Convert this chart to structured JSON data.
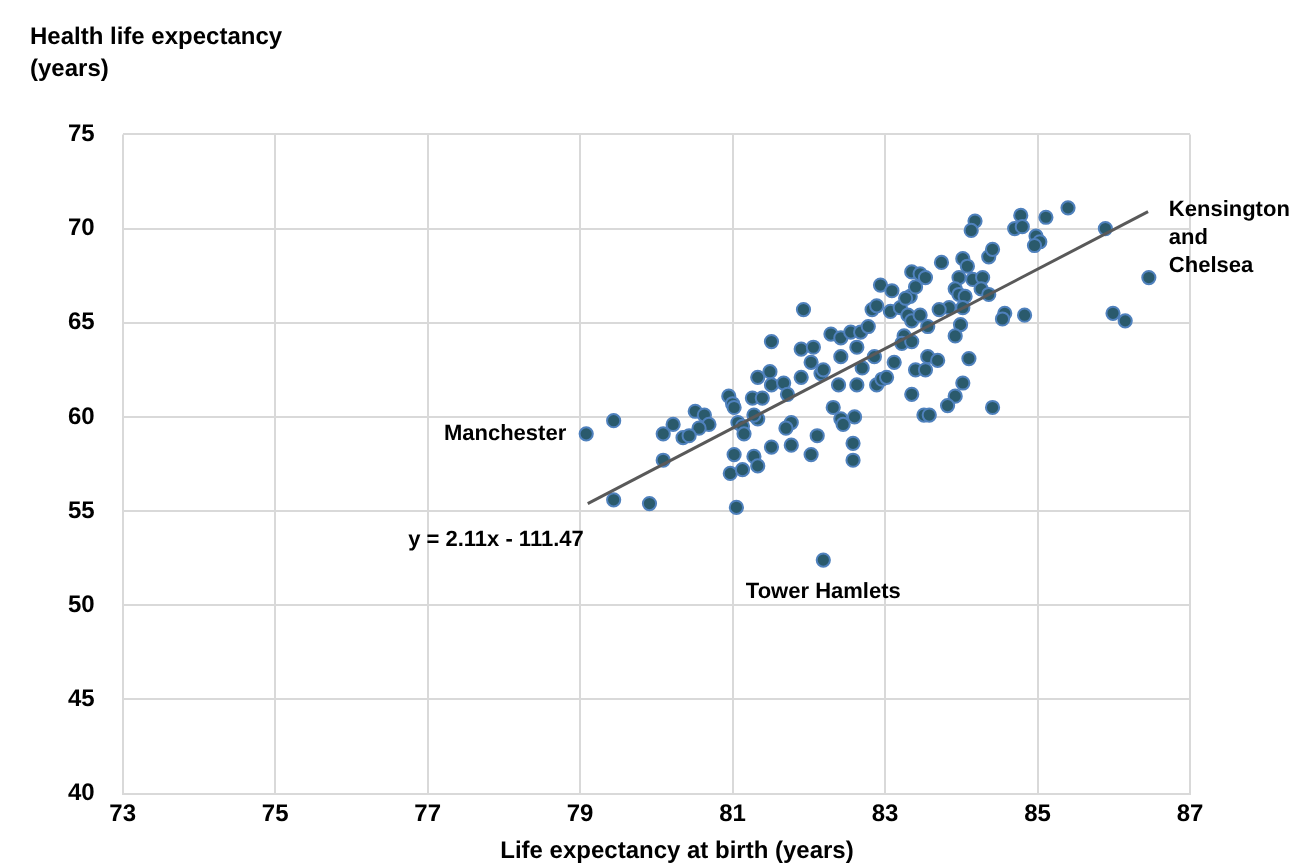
{
  "chart_data": {
    "type": "scatter",
    "xlabel": "Life expectancy at birth (years)",
    "ylabel": "Health life expectancy (years)",
    "xlim": [
      73,
      87
    ],
    "xticks": [
      73,
      75,
      77,
      79,
      81,
      83,
      85,
      87
    ],
    "ylim": [
      40,
      75
    ],
    "yticks": [
      40,
      45,
      50,
      55,
      60,
      65,
      70,
      75
    ],
    "grid": true,
    "legend": false,
    "series": [
      {
        "marker": "circle",
        "color": "#2a5a6c",
        "x": [
          79.08,
          79.44,
          79.44,
          79.91,
          80.09,
          80.22,
          80.09,
          80.51,
          80.63,
          80.69,
          80.56,
          80.35,
          80.43,
          80.95,
          81.0,
          81.02,
          81.26,
          81.39,
          81.51,
          81.33,
          81.67,
          81.72,
          81.9,
          81.07,
          81.13,
          81.15,
          81.33,
          81.28,
          81.77,
          81.7,
          81.02,
          81.28,
          80.97,
          81.13,
          81.33,
          81.05,
          81.51,
          81.77,
          82.03,
          82.11,
          82.32,
          82.42,
          82.45,
          82.6,
          82.58,
          82.58,
          82.19,
          82.16,
          82.39,
          82.63,
          82.89,
          82.96,
          83.35,
          83.51,
          81.93,
          81.51,
          81.9,
          82.06,
          82.29,
          82.42,
          82.55,
          82.68,
          82.78,
          82.63,
          82.83,
          82.89,
          82.94,
          83.09,
          83.07,
          83.2,
          83.3,
          83.33,
          83.35,
          83.46,
          83.4,
          83.35,
          83.25,
          83.22,
          83.35,
          83.12,
          82.86,
          82.7,
          82.42,
          82.19,
          82.03,
          81.49,
          84.78,
          85.4,
          85.11,
          84.7,
          84.8,
          84.18,
          84.13,
          84.98,
          85.03,
          84.96,
          85.89,
          86.46,
          85.99,
          86.15,
          84.57,
          84.54,
          84.83,
          84.36,
          84.41,
          84.02,
          84.08,
          83.74,
          83.53,
          83.97,
          84.15,
          84.28,
          84.26,
          83.92,
          83.97,
          84.05,
          84.36,
          84.02,
          83.84,
          83.71,
          83.27,
          83.46,
          83.56,
          83.99,
          83.92,
          83.56,
          83.69,
          84.1,
          83.4,
          83.53,
          84.02,
          83.92,
          83.82,
          84.41,
          83.58,
          83.02
        ],
        "values": [
          59.1,
          59.8,
          55.6,
          55.4,
          59.1,
          59.6,
          57.7,
          60.3,
          60.1,
          59.6,
          59.4,
          58.9,
          59.0,
          61.1,
          60.7,
          60.5,
          61.0,
          61.0,
          61.7,
          62.1,
          61.8,
          61.2,
          62.1,
          59.7,
          59.5,
          59.1,
          59.9,
          60.1,
          59.7,
          59.4,
          58.0,
          57.9,
          57.0,
          57.2,
          57.4,
          55.2,
          58.4,
          58.5,
          58.0,
          59.0,
          60.5,
          59.9,
          59.6,
          60.0,
          58.6,
          57.7,
          52.4,
          62.3,
          61.7,
          61.7,
          61.7,
          62.0,
          61.2,
          60.1,
          65.7,
          64.0,
          63.6,
          63.7,
          64.4,
          64.2,
          64.5,
          64.5,
          64.8,
          63.7,
          65.7,
          65.9,
          67.0,
          66.7,
          65.6,
          65.8,
          65.4,
          66.4,
          67.7,
          67.6,
          66.9,
          65.1,
          64.3,
          63.9,
          64.0,
          62.9,
          63.2,
          62.6,
          63.2,
          62.5,
          62.9,
          62.4,
          70.7,
          71.1,
          70.6,
          70.0,
          70.1,
          70.4,
          69.9,
          69.6,
          69.3,
          69.1,
          70.0,
          67.4,
          65.5,
          65.1,
          65.5,
          65.2,
          65.4,
          68.5,
          68.9,
          68.4,
          68.0,
          68.2,
          67.4,
          67.4,
          67.3,
          67.4,
          66.8,
          66.8,
          66.5,
          66.4,
          66.5,
          65.8,
          65.8,
          65.7,
          66.3,
          65.4,
          64.8,
          64.9,
          64.3,
          63.2,
          63.0,
          63.1,
          62.5,
          62.5,
          61.8,
          61.1,
          60.6,
          60.5,
          60.1,
          62.1
        ]
      },
      {
        "type": "line",
        "marker": "none",
        "color": "#595959",
        "x": [
          79.1,
          86.45
        ],
        "values": [
          55.4,
          70.9
        ]
      }
    ],
    "annotations": [
      {
        "text": "Manchester",
        "x": 79.08,
        "y": 59.1
      },
      {
        "text": "Tower Hamlets",
        "x": 82.19,
        "y": 52.4
      },
      {
        "text": "Kensington and Chelsea",
        "x": 86.46,
        "y": 67.4
      },
      "y = 2.11x - 111.47"
    ]
  }
}
